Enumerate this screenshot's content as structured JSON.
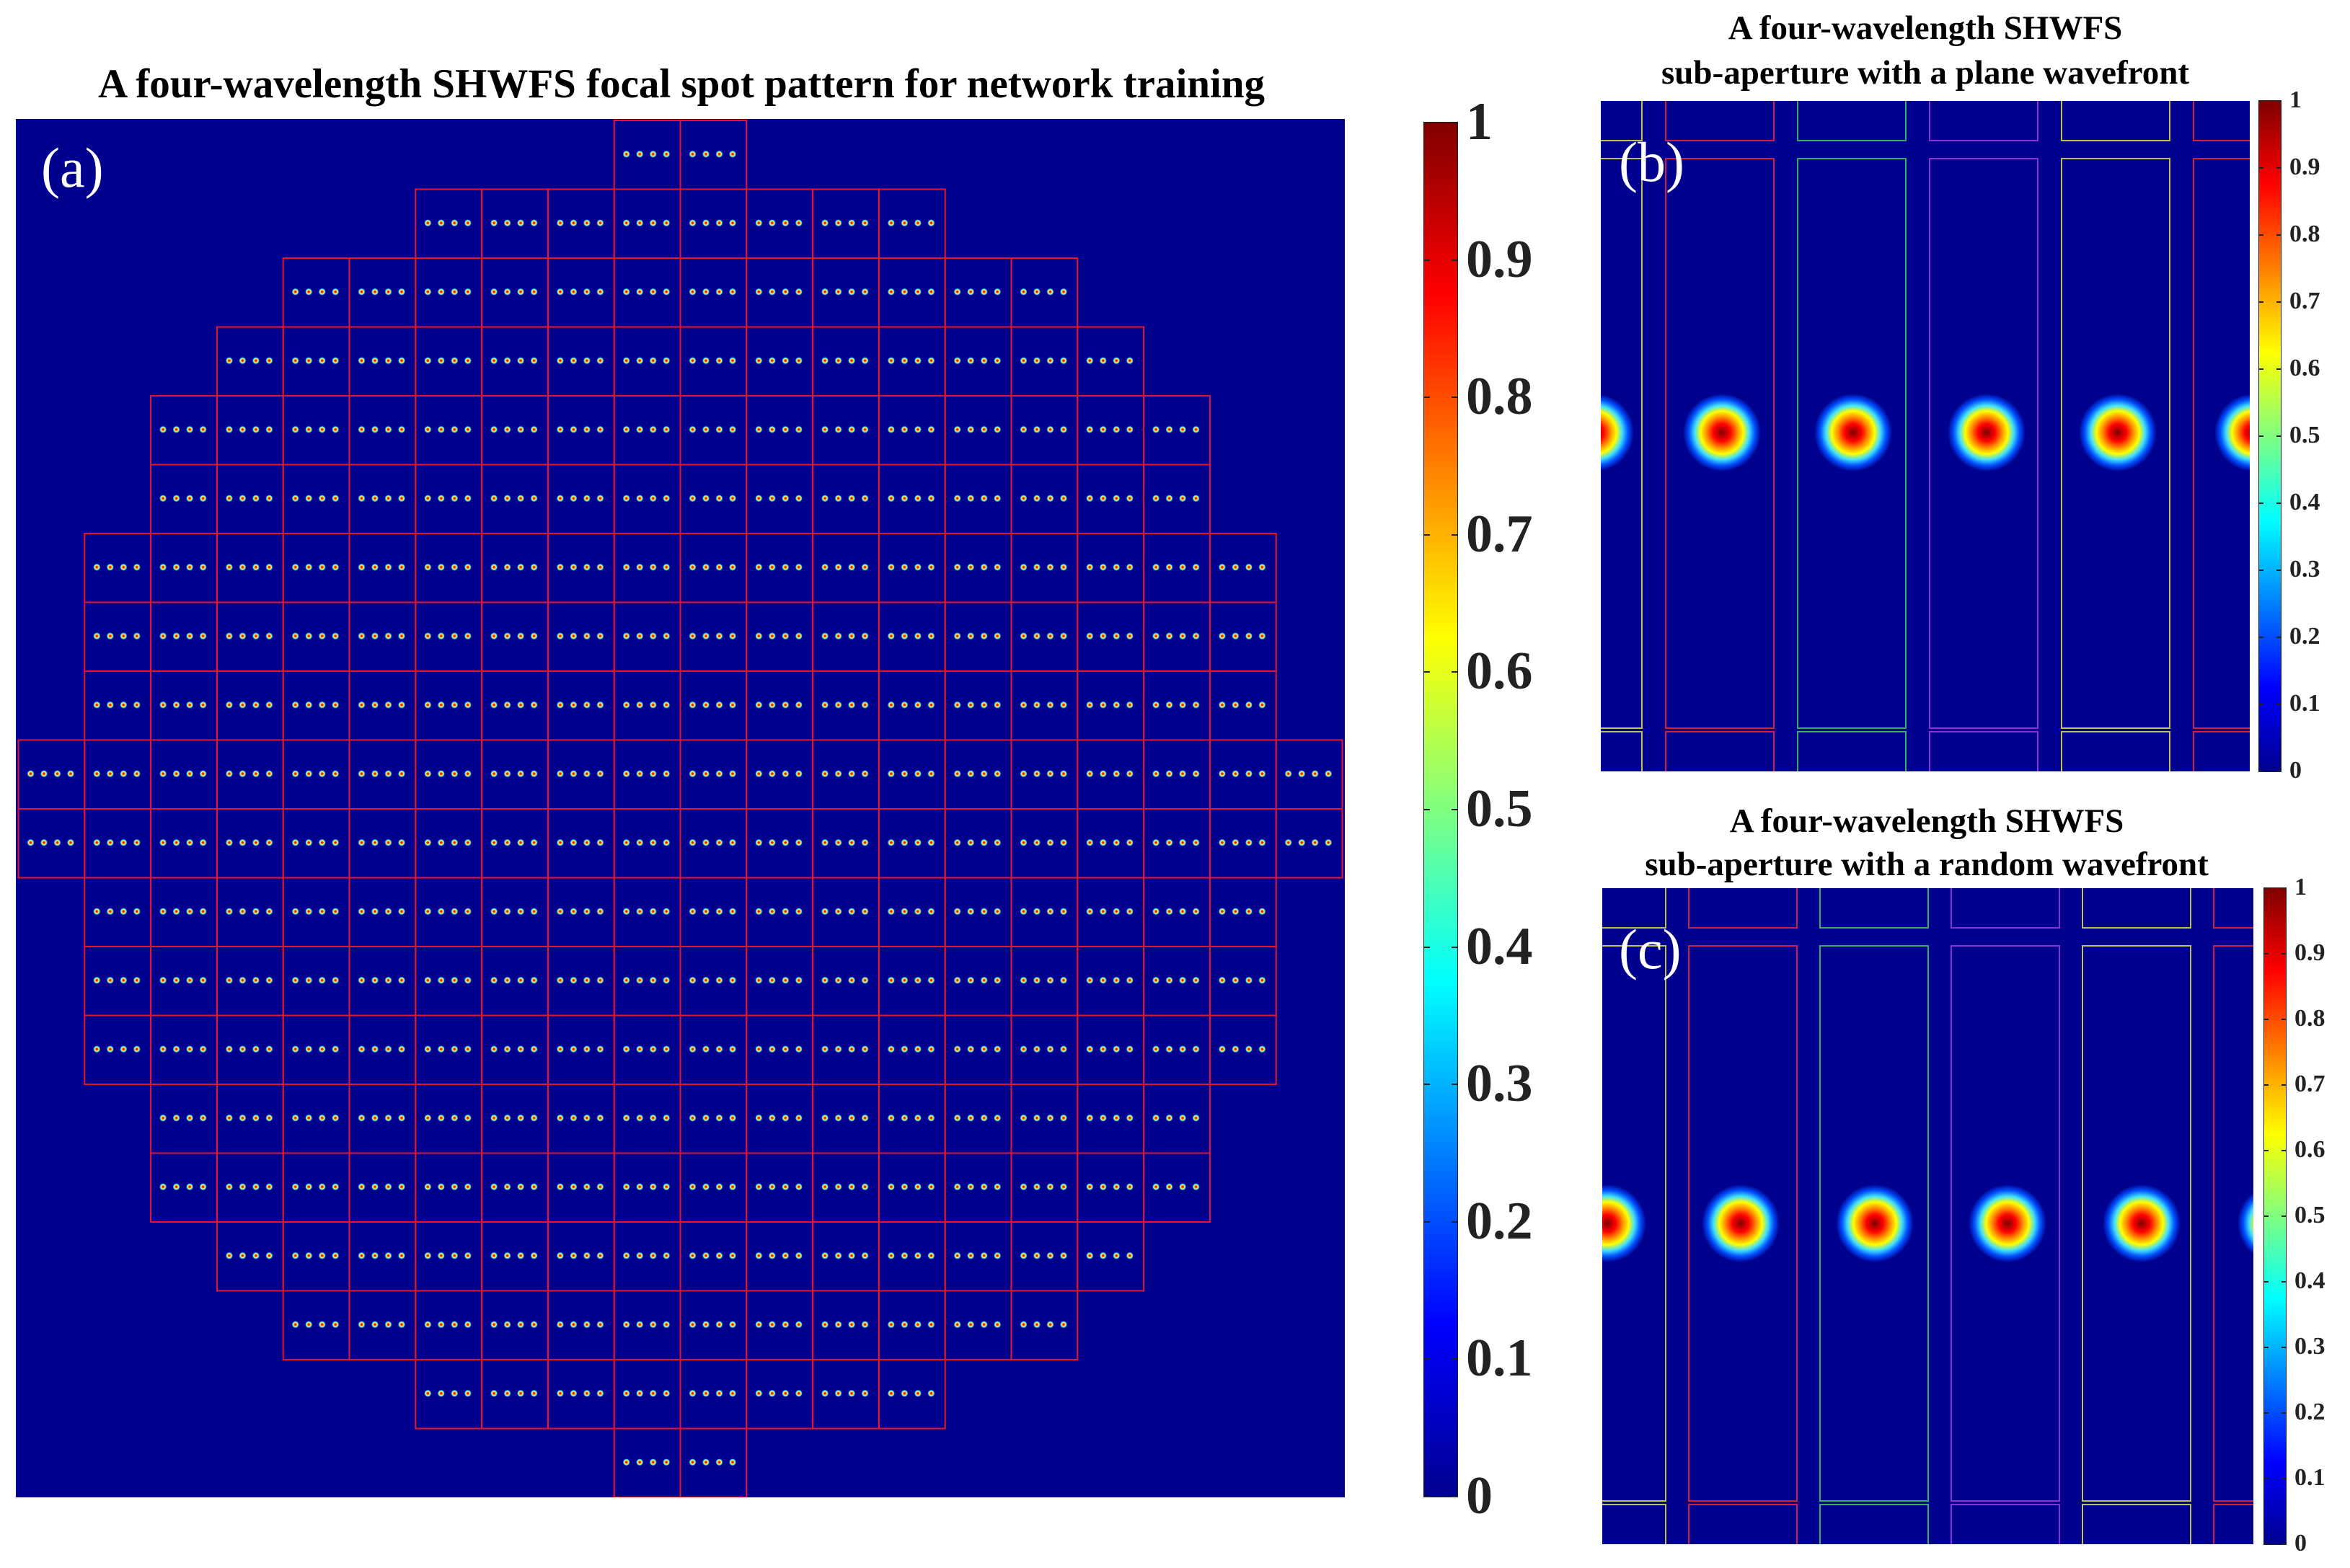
{
  "panel_a": {
    "title": "A four-wavelength SHWFS focal spot pattern for network training",
    "label": "(a)",
    "row_lenses": [
      2,
      8,
      12,
      14,
      16,
      16,
      18,
      18,
      18,
      20,
      20,
      18,
      18,
      18,
      16,
      16,
      14,
      12,
      8,
      2
    ],
    "spots_per_lens": 4,
    "grid_color": "#e8142a",
    "background": "#00008f"
  },
  "colorbar_a": {
    "ticks": [
      "0",
      "0.1",
      "0.2",
      "0.3",
      "0.4",
      "0.5",
      "0.6",
      "0.7",
      "0.8",
      "0.9",
      "1"
    ]
  },
  "panel_b": {
    "title_line1": "A four-wavelength SHWFS",
    "title_line2": "sub-aperture with a plane wavefront",
    "label": "(b)"
  },
  "colorbar_b": {
    "ticks": [
      "0",
      "0.1",
      "0.2",
      "0.3",
      "0.4",
      "0.5",
      "0.6",
      "0.7",
      "0.8",
      "0.9",
      "1"
    ]
  },
  "panel_c": {
    "title_line1": "A four-wavelength SHWFS",
    "title_line2": "sub-aperture with a random wavefront",
    "label": "(c)"
  },
  "colorbar_c": {
    "ticks": [
      "0",
      "0.1",
      "0.2",
      "0.3",
      "0.4",
      "0.5",
      "0.6",
      "0.7",
      "0.8",
      "0.9",
      "1"
    ]
  },
  "subaperture_box_colors": [
    "#d02040",
    "#30b060",
    "#9030d0",
    "#c0c050"
  ],
  "colormap": [
    "#00008f",
    "#0000ff",
    "#0080ff",
    "#00ffff",
    "#80ff80",
    "#ffff00",
    "#ff8000",
    "#ff0000",
    "#800000"
  ]
}
